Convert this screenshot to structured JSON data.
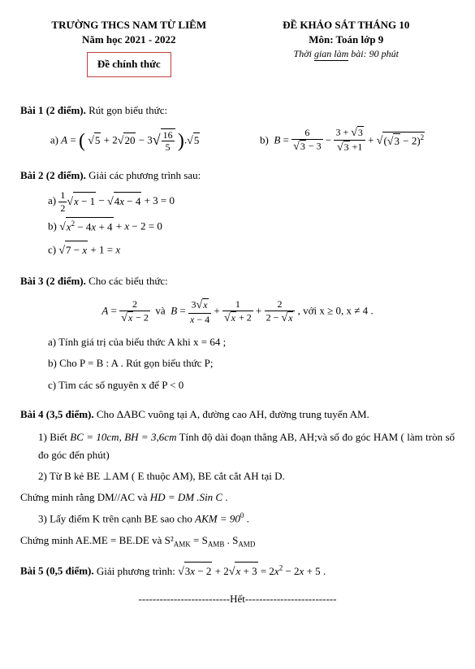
{
  "header": {
    "school": "TRƯỜNG THCS NAM TỪ LIÊM",
    "year": "Năm học 2021 - 2022",
    "official": "Đề chính thức",
    "exam_title": "ĐỀ KHẢO SÁT THÁNG 10",
    "subject": "Môn: Toán lớp 9",
    "time_prefix": "Thời ",
    "time_underlined": "gian làm",
    "time_suffix": " bài: 90 phút"
  },
  "bai1": {
    "title": "Bài 1 (2 điểm).",
    "text": " Rút gọn biểu thức:",
    "a_label": "a)  ",
    "b_label": "b)  "
  },
  "bai2": {
    "title": "Bài 2 (2 điểm).",
    "text": " Giải các phương trình sau:",
    "a_label": "a) ",
    "b_label": "b) ",
    "c_label": "c) "
  },
  "bai3": {
    "title": "Bài 3 (2 điểm).",
    "text": " Cho các biểu thức:",
    "a": "a) Tính giá trị của biểu thức  A  khi  x = 64 ;",
    "b": "b) Cho  P = B : A . Rút gọn biểu thức P;",
    "c": "c) Tìm các số nguyên x để P < 0",
    "cond": ", với  x ≥ 0, x ≠ 4 ."
  },
  "bai4": {
    "title": "Bài 4 (3,5 điểm).",
    "intro": " Cho ΔABC vuông tại A, đường cao AH, đường trung tuyến AM.",
    "p1a": "1) Biết ",
    "p1b": "BC = 10cm",
    "p1c": ", ",
    "p1d": "BH = 3,6cm",
    "p1e": " Tính độ dài đoạn thẳng AB, AH;và số đo góc HAM ( làm tròn số đo góc đến phút)",
    "p2": "2) Từ B kẻ BE ⊥AM ( E thuộc AM), BE cắt cắt AH tại D.",
    "p2b_pre": "Chứng minh rằng DM//AC và ",
    "p2b_eq": "HD = DM .Sin C",
    "p2b_post": " .",
    "p3_pre": "3) Lấy điểm K trên cạnh BE sao cho  ",
    "p3_eq": "AKM = 90",
    "p3_post": " .",
    "p3b": "Chứng minh AE.ME = BE.DE và S²"
  },
  "bai5": {
    "title": "Bài 5 (0,5 điểm).",
    "text": " Giải phương trình:  "
  },
  "het": "--------------------------Hết--------------------------"
}
